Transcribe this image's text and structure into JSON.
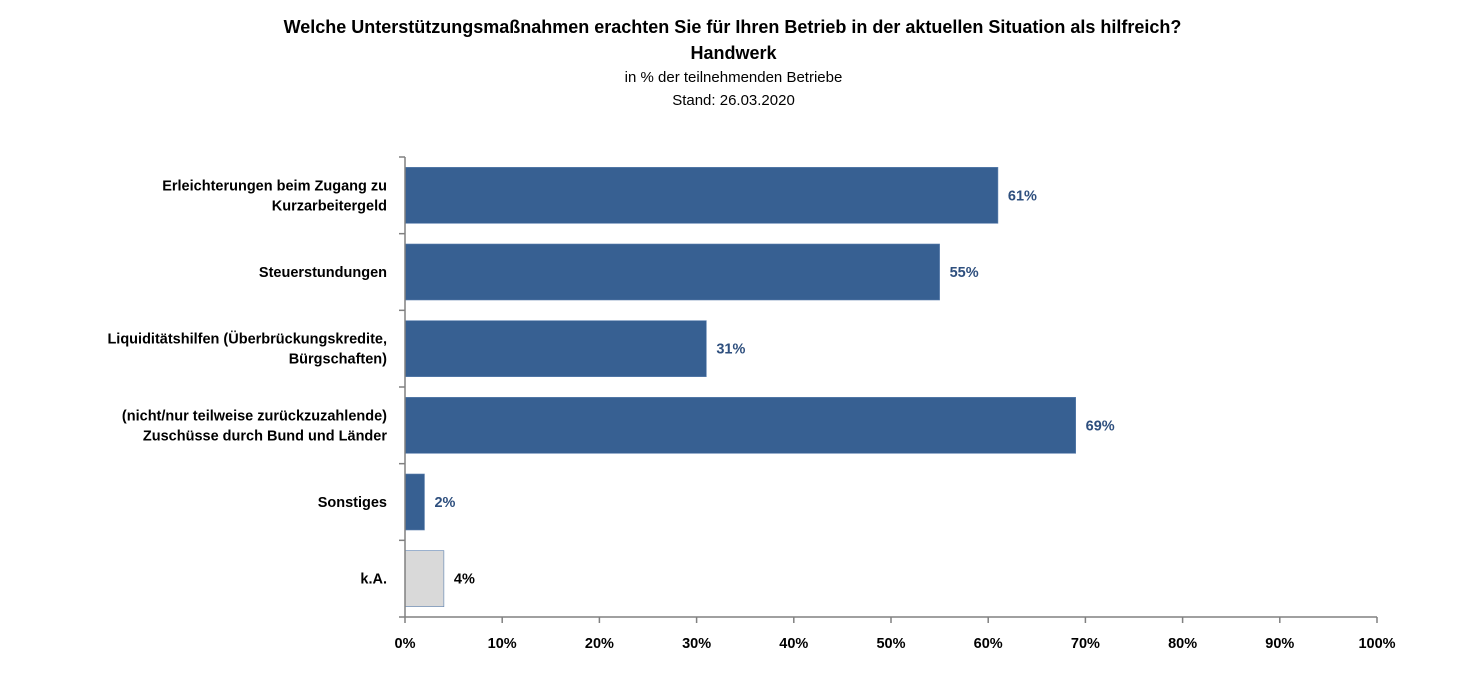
{
  "chart_data": {
    "type": "bar",
    "orientation": "horizontal",
    "title": "Welche Unterstützungsmaßnahmen erachten Sie für Ihren Betrieb in der aktuellen Situation als hilfreich?",
    "subtitle": "Handwerk",
    "note1": "in % der teilnehmenden Betriebe",
    "note2": "Stand:  26.03.2020",
    "xlim": [
      0,
      100
    ],
    "x_ticks": [
      "0%",
      "10%",
      "20%",
      "30%",
      "40%",
      "50%",
      "60%",
      "70%",
      "80%",
      "90%",
      "100%"
    ],
    "grid": false,
    "categories": [
      [
        "Erleichterungen beim Zugang zu",
        "Kurzarbeitergeld"
      ],
      [
        "Steuerstundungen"
      ],
      [
        "Liquiditätshilfen (Überbrückungskredite,",
        "Bürgschaften)"
      ],
      [
        "(nicht/nur teilweise zurückzuzahlende)",
        "Zuschüsse durch Bund und Länder"
      ],
      [
        "Sonstiges"
      ],
      [
        "k.A."
      ]
    ],
    "values": [
      61,
      55,
      31,
      69,
      2,
      4
    ],
    "value_labels": [
      "61%",
      "55%",
      "31%",
      "69%",
      "2%",
      "4%"
    ],
    "colors": [
      "#376092",
      "#376092",
      "#376092",
      "#376092",
      "#376092",
      "#d9d9d9"
    ],
    "label_colors": [
      "#2e4f7e",
      "#2e4f7e",
      "#2e4f7e",
      "#2e4f7e",
      "#2e4f7e",
      "#000000"
    ]
  }
}
